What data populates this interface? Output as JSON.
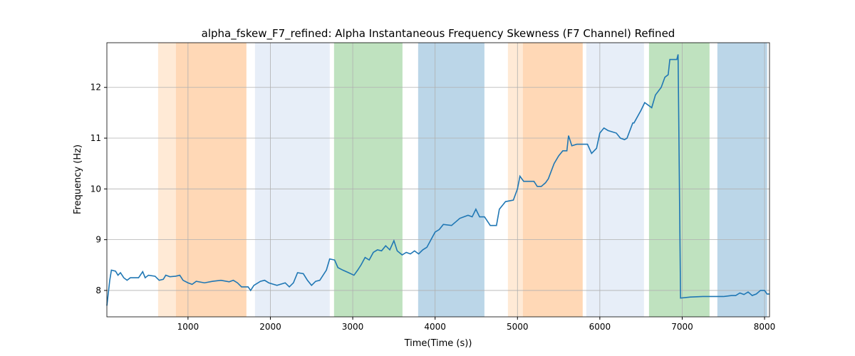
{
  "chart_data": {
    "type": "line",
    "title": "alpha_fskew_F7_refined: Alpha Instantaneous Frequency Skewness (F7 Channel) Refined",
    "x_label": "Time(Time (s))",
    "y_label": "Frequency (Hz)",
    "xlim": [
      15,
      8060
    ],
    "ylim": [
      7.48,
      12.88
    ],
    "xticks": [
      1000,
      2000,
      3000,
      4000,
      5000,
      6000,
      7000,
      8000
    ],
    "yticks": [
      8,
      9,
      10,
      11,
      12
    ],
    "grid": true,
    "spans": [
      {
        "start": 637,
        "end": 853,
        "color": "#ffbb78"
      },
      {
        "start": 853,
        "end": 1709,
        "color": "#ff7f0e"
      },
      {
        "start": 1813,
        "end": 2721,
        "color": "#aec7e8"
      },
      {
        "start": 2773,
        "end": 3604,
        "color": "#2ca02c"
      },
      {
        "start": 3794,
        "end": 4599,
        "color": "#1f77b4"
      },
      {
        "start": 4884,
        "end": 5066,
        "color": "#ffbb78"
      },
      {
        "start": 5066,
        "end": 5792,
        "color": "#ff7f0e"
      },
      {
        "start": 5836,
        "end": 6536,
        "color": "#aec7e8"
      },
      {
        "start": 6597,
        "end": 7332,
        "color": "#2ca02c"
      },
      {
        "start": 7427,
        "end": 8032,
        "color": "#1f77b4"
      }
    ],
    "series": [
      {
        "name": "alpha_fskew_F7_refined",
        "color": "#1f77b4",
        "x": [
          15,
          50,
          70,
          120,
          150,
          180,
          220,
          260,
          300,
          400,
          450,
          480,
          520,
          600,
          650,
          700,
          730,
          780,
          850,
          900,
          940,
          1000,
          1050,
          1100,
          1200,
          1300,
          1400,
          1500,
          1550,
          1600,
          1650,
          1730,
          1760,
          1800,
          1880,
          1930,
          1980,
          2080,
          2180,
          2230,
          2280,
          2330,
          2400,
          2450,
          2500,
          2550,
          2600,
          2680,
          2720,
          2780,
          2820,
          2880,
          2950,
          3015,
          3060,
          3100,
          3150,
          3200,
          3250,
          3300,
          3350,
          3400,
          3450,
          3500,
          3540,
          3600,
          3650,
          3700,
          3750,
          3800,
          3850,
          3900,
          3950,
          4000,
          4050,
          4100,
          4200,
          4250,
          4300,
          4350,
          4400,
          4450,
          4495,
          4540,
          4600,
          4670,
          4745,
          4780,
          4855,
          4950,
          5000,
          5030,
          5075,
          5200,
          5240,
          5290,
          5340,
          5375,
          5445,
          5500,
          5550,
          5600,
          5620,
          5660,
          5720,
          5850,
          5900,
          5960,
          6000,
          6050,
          6100,
          6200,
          6250,
          6300,
          6330,
          6400,
          6415,
          6500,
          6545,
          6630,
          6675,
          6745,
          6790,
          6830,
          6850,
          6935,
          6950,
          6980,
          7100,
          7250,
          7400,
          7500,
          7600,
          7650,
          7700,
          7750,
          7800,
          7850,
          7900,
          7950,
          8000,
          8030,
          8060
        ],
        "values": [
          7.7,
          8.2,
          8.4,
          8.38,
          8.3,
          8.35,
          8.25,
          8.2,
          8.25,
          8.25,
          8.37,
          8.25,
          8.3,
          8.28,
          8.2,
          8.22,
          8.3,
          8.27,
          8.28,
          8.3,
          8.2,
          8.15,
          8.12,
          8.18,
          8.15,
          8.18,
          8.2,
          8.17,
          8.2,
          8.15,
          8.07,
          8.07,
          8.0,
          8.1,
          8.18,
          8.2,
          8.15,
          8.1,
          8.15,
          8.07,
          8.15,
          8.35,
          8.33,
          8.2,
          8.1,
          8.18,
          8.2,
          8.4,
          8.62,
          8.6,
          8.45,
          8.4,
          8.35,
          8.3,
          8.4,
          8.5,
          8.65,
          8.6,
          8.75,
          8.8,
          8.78,
          8.88,
          8.8,
          8.98,
          8.78,
          8.7,
          8.75,
          8.72,
          8.78,
          8.72,
          8.8,
          8.85,
          9.0,
          9.15,
          9.2,
          9.3,
          9.28,
          9.35,
          9.42,
          9.45,
          9.48,
          9.45,
          9.6,
          9.45,
          9.45,
          9.28,
          9.28,
          9.6,
          9.75,
          9.78,
          10.0,
          10.25,
          10.15,
          10.15,
          10.05,
          10.05,
          10.12,
          10.2,
          10.5,
          10.65,
          10.75,
          10.75,
          11.05,
          10.85,
          10.88,
          10.88,
          10.7,
          10.8,
          11.1,
          11.2,
          11.15,
          11.1,
          11.0,
          10.97,
          11.0,
          11.3,
          11.3,
          11.55,
          11.7,
          11.6,
          11.85,
          12.0,
          12.2,
          12.25,
          12.55,
          12.55,
          12.65,
          7.85,
          7.87,
          7.88,
          7.88,
          7.88,
          7.9,
          7.9,
          7.95,
          7.92,
          7.97,
          7.9,
          7.93,
          8.0,
          8.0,
          7.93,
          7.93
        ]
      }
    ]
  }
}
